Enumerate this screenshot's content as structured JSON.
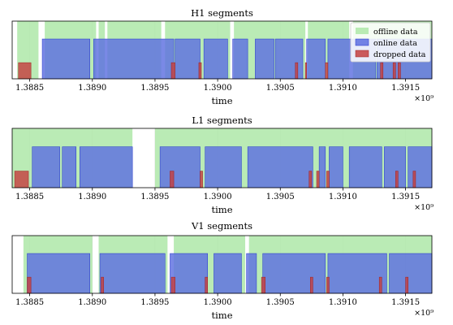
{
  "chart_data": [
    {
      "type": "segments",
      "title": "H1 segments",
      "xlabel": "time",
      "x_multiplier": "×10⁹",
      "xlim": [
        1.38836,
        1.39171
      ],
      "xticks": [
        1.3885,
        1.389,
        1.3895,
        1.39,
        1.3905,
        1.391,
        1.3915
      ],
      "xtick_labels": [
        "1.3885",
        "1.3890",
        "1.3895",
        "1.3900",
        "1.3905",
        "1.3910",
        "1.3915"
      ],
      "grid": true,
      "legend": {
        "placement": "top-right",
        "entries": [
          {
            "label": "offline data",
            "color": "#aee7a8",
            "level": "offline"
          },
          {
            "label": "online data",
            "color": "#5d6fe0",
            "level": "online"
          },
          {
            "label": "dropped data",
            "color": "#c44040",
            "level": "dropped"
          }
        ]
      },
      "series": [
        {
          "name": "offline data",
          "level": "offline",
          "color": "#aee7a8",
          "segments": [
            [
              1.3884,
              1.38857
            ],
            [
              1.38862,
              1.38903
            ],
            [
              1.38905,
              1.3891
            ],
            [
              1.38912,
              1.38955
            ],
            [
              1.38958,
              1.3901
            ],
            [
              1.39013,
              1.3907
            ],
            [
              1.39072,
              1.39105
            ],
            [
              1.39108,
              1.39171
            ]
          ]
        },
        {
          "name": "online data",
          "level": "online",
          "color": "#5d6fe0",
          "segments": [
            [
              1.3886,
              1.38898
            ],
            [
              1.38901,
              1.38965
            ],
            [
              1.38966,
              1.38986
            ],
            [
              1.38989,
              1.39008
            ],
            [
              1.39012,
              1.39024
            ],
            [
              1.3903,
              1.39045
            ],
            [
              1.39046,
              1.39068
            ],
            [
              1.39071,
              1.39086
            ],
            [
              1.39088,
              1.39126
            ],
            [
              1.39127,
              1.39171
            ]
          ]
        },
        {
          "name": "dropped data",
          "level": "dropped",
          "color": "#c44040",
          "segments": [
            [
              1.38841,
              1.38851
            ],
            [
              1.38963,
              1.38966
            ],
            [
              1.38985,
              1.38987
            ],
            [
              1.39062,
              1.39064
            ],
            [
              1.3907,
              1.39071
            ],
            [
              1.39086,
              1.39088
            ],
            [
              1.3913,
              1.39132
            ],
            [
              1.3914,
              1.39142
            ],
            [
              1.39144,
              1.39146
            ]
          ]
        }
      ]
    },
    {
      "type": "segments",
      "title": "L1 segments",
      "xlabel": "time",
      "x_multiplier": "×10⁹",
      "xlim": [
        1.38836,
        1.39171
      ],
      "xticks": [
        1.3885,
        1.389,
        1.3895,
        1.39,
        1.3905,
        1.391,
        1.3915
      ],
      "xtick_labels": [
        "1.3885",
        "1.3890",
        "1.3895",
        "1.3900",
        "1.3905",
        "1.3910",
        "1.3915"
      ],
      "grid": true,
      "series": [
        {
          "name": "offline data",
          "level": "offline",
          "color": "#aee7a8",
          "segments": [
            [
              1.38836,
              1.38932
            ],
            [
              1.3895,
              1.39171
            ]
          ]
        },
        {
          "name": "online data",
          "level": "online",
          "color": "#5d6fe0",
          "segments": [
            [
              1.38852,
              1.38874
            ],
            [
              1.38876,
              1.38887
            ],
            [
              1.3889,
              1.38932
            ],
            [
              1.38954,
              1.38986
            ],
            [
              1.3899,
              1.39019
            ],
            [
              1.39024,
              1.39076
            ],
            [
              1.39081,
              1.39086
            ],
            [
              1.39089,
              1.391
            ],
            [
              1.39105,
              1.39131
            ],
            [
              1.39133,
              1.3915
            ],
            [
              1.39152,
              1.39171
            ]
          ]
        },
        {
          "name": "dropped data",
          "level": "dropped",
          "color": "#c44040",
          "segments": [
            [
              1.38838,
              1.38849
            ],
            [
              1.38962,
              1.38965
            ],
            [
              1.38986,
              1.38988
            ],
            [
              1.39073,
              1.39075
            ],
            [
              1.39079,
              1.39081
            ],
            [
              1.39087,
              1.39089
            ],
            [
              1.39142,
              1.39144
            ],
            [
              1.39156,
              1.39158
            ]
          ]
        }
      ]
    },
    {
      "type": "segments",
      "title": "V1 segments",
      "xlabel": "time",
      "x_multiplier": "×10⁹",
      "xlim": [
        1.38836,
        1.39171
      ],
      "xticks": [
        1.3885,
        1.389,
        1.3895,
        1.39,
        1.3905,
        1.391,
        1.3915
      ],
      "xtick_labels": [
        "1.3885",
        "1.3890",
        "1.3895",
        "1.3900",
        "1.3905",
        "1.3910",
        "1.3915"
      ],
      "grid": true,
      "series": [
        {
          "name": "offline data",
          "level": "offline",
          "color": "#aee7a8",
          "segments": [
            [
              1.38845,
              1.389
            ],
            [
              1.38905,
              1.3896
            ],
            [
              1.38965,
              1.39022
            ],
            [
              1.39025,
              1.39171
            ]
          ]
        },
        {
          "name": "online data",
          "level": "online",
          "color": "#5d6fe0",
          "segments": [
            [
              1.38848,
              1.38898
            ],
            [
              1.38906,
              1.38958
            ],
            [
              1.38962,
              1.38992
            ],
            [
              1.38997,
              1.39019
            ],
            [
              1.39023,
              1.39031
            ],
            [
              1.39036,
              1.39086
            ],
            [
              1.39088,
              1.39135
            ],
            [
              1.39137,
              1.39171
            ]
          ]
        },
        {
          "name": "dropped data",
          "level": "dropped",
          "color": "#c44040",
          "segments": [
            [
              1.38848,
              1.38851
            ],
            [
              1.38907,
              1.38909
            ],
            [
              1.38963,
              1.38966
            ],
            [
              1.3899,
              1.38992
            ],
            [
              1.39035,
              1.39038
            ],
            [
              1.39074,
              1.39076
            ],
            [
              1.39087,
              1.39089
            ],
            [
              1.39129,
              1.39131
            ],
            [
              1.3915,
              1.39152
            ]
          ]
        }
      ]
    }
  ]
}
